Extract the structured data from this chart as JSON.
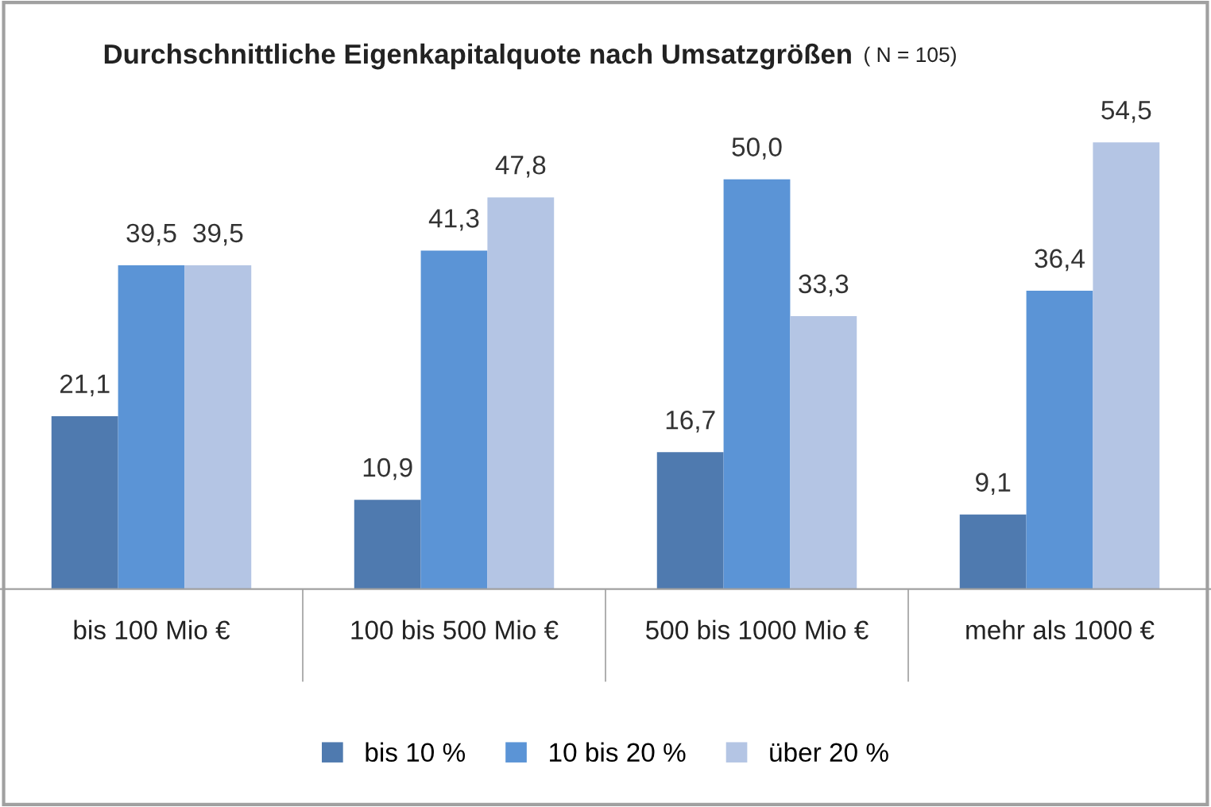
{
  "chart_data": {
    "type": "bar",
    "title": "Durchschnittliche Eigenkapitalquote nach Umsatzgrößen",
    "subtitle": "( N = 105)",
    "categories": [
      "bis 100 Mio €",
      "100 bis 500 Mio €",
      "500 bis 1000 Mio €",
      "mehr als 1000 €"
    ],
    "series": [
      {
        "name": "bis 10 %",
        "color": "#4f7aaf",
        "values": [
          21.1,
          10.9,
          16.7,
          9.1
        ],
        "value_labels": [
          "21,1",
          "10,9",
          "16,7",
          "9,1"
        ]
      },
      {
        "name": "10 bis 20 %",
        "color": "#5b94d6",
        "values": [
          39.5,
          41.3,
          50.0,
          36.4
        ],
        "value_labels": [
          "39,5",
          "41,3",
          "50,0",
          "36,4"
        ]
      },
      {
        "name": "über 20 %",
        "color": "#b4c5e4",
        "values": [
          39.5,
          47.8,
          33.3,
          54.5
        ],
        "value_labels": [
          "39,5",
          "47,8",
          "33,3",
          "54,5"
        ]
      }
    ],
    "legend": "bottom",
    "grid": false
  }
}
